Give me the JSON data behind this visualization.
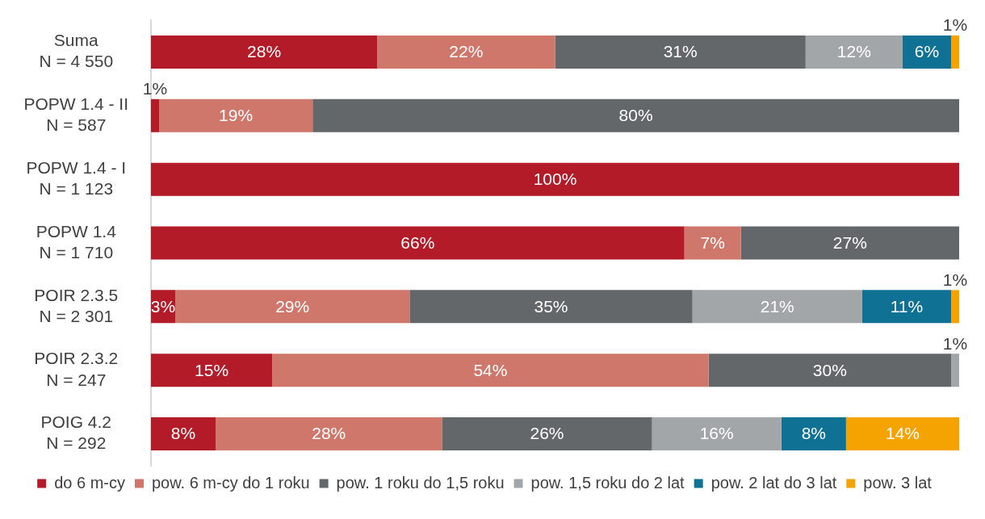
{
  "chart_data": {
    "type": "bar",
    "orientation": "horizontal",
    "stacked": true,
    "categories": [
      "Suma\nN = 4 550",
      "POPW 1.4 - II\nN = 587",
      "POPW 1.4 - I\nN = 1 123",
      "POPW 1.4\nN = 1 710",
      "POIR 2.3.5\nN = 2 301",
      "POIR 2.3.2\nN = 247",
      "POIG 4.2\nN = 292"
    ],
    "series": [
      {
        "name": "do 6 m-cy",
        "color": "#b31b28",
        "values": [
          28,
          1,
          100,
          66,
          3,
          15,
          8
        ],
        "value_labels": [
          "28%",
          "1%",
          "100%",
          "66%",
          "3%",
          "15%",
          "8%"
        ]
      },
      {
        "name": "pow. 6 m-cy do 1 roku",
        "color": "#d0776b",
        "values": [
          22,
          19,
          null,
          7,
          29,
          54,
          28
        ],
        "value_labels": [
          "22%",
          "19%",
          null,
          "7%",
          "29%",
          "54%",
          "28%"
        ]
      },
      {
        "name": "pow. 1 roku do 1,5 roku",
        "color": "#63676a",
        "values": [
          31,
          80,
          null,
          27,
          35,
          30,
          26
        ],
        "value_labels": [
          "31%",
          "80%",
          null,
          "27%",
          "35%",
          "30%",
          "26%"
        ]
      },
      {
        "name": "pow. 1,5 roku do 2 lat",
        "color": "#a3a6a9",
        "values": [
          12,
          null,
          null,
          null,
          21,
          1,
          16
        ],
        "value_labels": [
          "12%",
          null,
          null,
          null,
          "21%",
          "1%",
          "16%"
        ]
      },
      {
        "name": "pow. 2 lat do 3 lat",
        "color": "#0f7294",
        "values": [
          6,
          null,
          null,
          null,
          11,
          null,
          8
        ],
        "value_labels": [
          "6%",
          null,
          null,
          null,
          "11%",
          null,
          "8%"
        ]
      },
      {
        "name": "pow. 3 lat",
        "color": "#f5a300",
        "values": [
          1,
          null,
          null,
          null,
          1,
          null,
          14
        ],
        "value_labels": [
          "1%",
          null,
          null,
          null,
          "1%",
          null,
          "14%"
        ]
      }
    ],
    "xlim": [
      0,
      100
    ],
    "tick_labels": "y",
    "grid": false,
    "legend": "bottom"
  }
}
